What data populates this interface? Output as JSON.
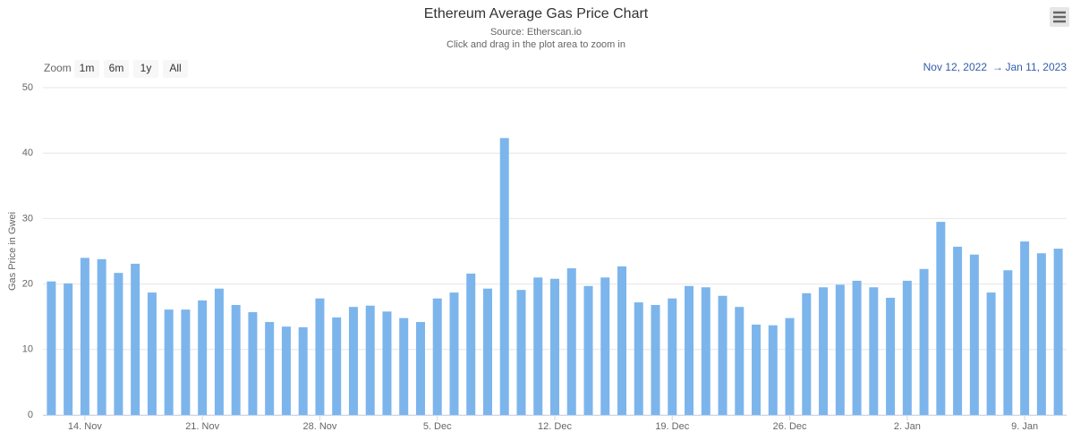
{
  "chart_data": {
    "type": "bar",
    "title": "Ethereum Average Gas Price Chart",
    "subtitle": "Source: Etherscan.io",
    "hint": "Click and drag in the plot area to zoom in",
    "y_label": "Gas Price in Gwei",
    "zoom": {
      "label": "Zoom",
      "buttons": [
        "1m",
        "6m",
        "1y",
        "All"
      ]
    },
    "range": {
      "from": "Nov 12, 2022",
      "separator": "→",
      "to": "Jan 11, 2023"
    },
    "categories": [
      null,
      null,
      "14. Nov",
      null,
      null,
      null,
      null,
      null,
      null,
      "21. Nov",
      null,
      null,
      null,
      null,
      null,
      null,
      "28. Nov",
      null,
      null,
      null,
      null,
      null,
      null,
      "5. Dec",
      null,
      null,
      null,
      null,
      null,
      null,
      "12. Dec",
      null,
      null,
      null,
      null,
      null,
      null,
      "19. Dec",
      null,
      null,
      null,
      null,
      null,
      null,
      "26. Dec",
      null,
      null,
      null,
      null,
      null,
      null,
      "2. Jan",
      null,
      null,
      null,
      null,
      null,
      null,
      "9. Jan",
      null,
      null
    ],
    "values": [
      20.4,
      20.1,
      24.0,
      23.8,
      21.7,
      23.1,
      18.7,
      16.1,
      16.1,
      17.5,
      19.3,
      16.8,
      15.7,
      14.2,
      13.5,
      13.4,
      17.8,
      14.9,
      16.5,
      16.7,
      15.8,
      14.8,
      14.2,
      17.8,
      18.7,
      21.6,
      19.3,
      42.3,
      19.1,
      21.0,
      20.8,
      22.4,
      19.7,
      21.0,
      22.7,
      17.2,
      16.8,
      17.8,
      19.7,
      19.5,
      18.2,
      16.5,
      13.8,
      13.7,
      14.8,
      18.6,
      19.5,
      19.9,
      20.5,
      19.5,
      17.9,
      20.5,
      22.3,
      29.5,
      25.7,
      24.5,
      18.7,
      22.1,
      26.5,
      24.7,
      25.4
    ],
    "color": "#7cb5ec",
    "ylim": [
      0,
      50
    ],
    "yticks": [
      0,
      10,
      20,
      30,
      40,
      50
    ],
    "grid": true
  }
}
